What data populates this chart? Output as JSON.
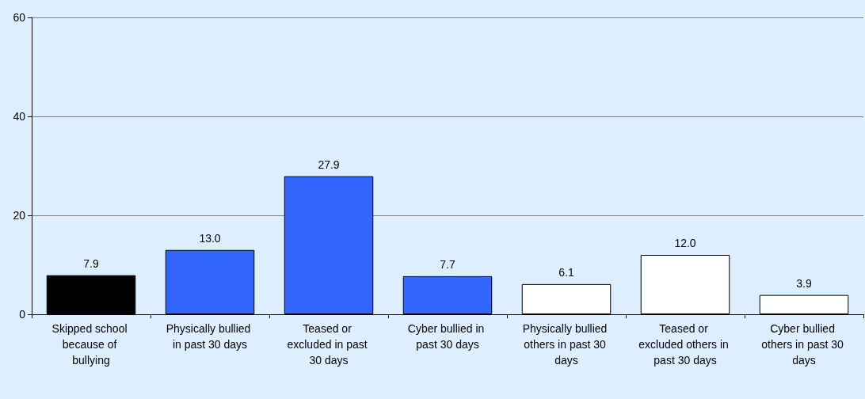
{
  "chart_data": {
    "type": "bar",
    "categories": [
      "Skipped school because of bullying",
      "Physically bullied in past 30 days",
      "Teased or excluded in past 30 days",
      "Cyber bullied in past 30 days",
      "Physically bullied others in past 30 days",
      "Teased or excluded others in past 30 days",
      "Cyber bullied others in past 30 days"
    ],
    "values": [
      7.9,
      13.0,
      27.9,
      7.7,
      6.1,
      12.0,
      3.9
    ],
    "colors": [
      "#000000",
      "#3366ff",
      "#3366ff",
      "#3366ff",
      "#ffffff",
      "#ffffff",
      "#ffffff"
    ],
    "value_labels": [
      "7.9",
      "13.0",
      "27.9",
      "7.7",
      "6.1",
      "12.0",
      "3.9"
    ],
    "ylim": [
      0,
      60
    ],
    "yticks": [
      0,
      20,
      40,
      60
    ],
    "grid": "y"
  }
}
